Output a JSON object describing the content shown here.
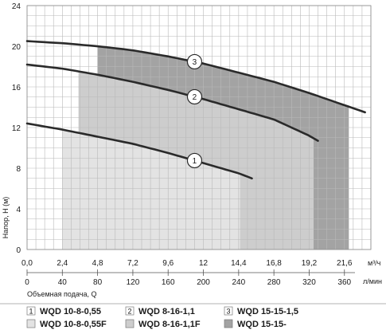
{
  "chart_data": {
    "type": "line",
    "title": "",
    "ylabel": "Напор, H (м)",
    "xlabel": "Объемная подача, Q",
    "xunit": "м³/ч",
    "x2unit": "л/мин",
    "ylim": [
      0,
      24
    ],
    "xlim": [
      0,
      23.4
    ],
    "yticks": [
      "0",
      "4",
      "8",
      "12",
      "16",
      "20",
      "24"
    ],
    "xticks": [
      "0,0",
      "2,4",
      "4,8",
      "7,2",
      "9,6",
      "12",
      "14,4",
      "16,8",
      "19,2",
      "21,6"
    ],
    "x2ticks": [
      "0",
      "40",
      "80",
      "120",
      "160",
      "200",
      "240",
      "280",
      "320",
      "360"
    ],
    "grid": true,
    "series": [
      {
        "name": "WQD 10-8-0,55",
        "label": "1",
        "color": "#2a2a2a",
        "x": [
          0,
          2.4,
          4.8,
          7.2,
          9.6,
          12,
          14.4,
          15.3
        ],
        "y": [
          12.4,
          11.8,
          11.1,
          10.4,
          9.5,
          8.5,
          7.5,
          7.0
        ],
        "region": {
          "xmin": 2.4,
          "xmax": 14.5,
          "fill": "#e3e3e3"
        }
      },
      {
        "name": "WQD 8-16-1,1",
        "label": "2",
        "color": "#2a2a2a",
        "x": [
          0,
          2.4,
          4.8,
          7.2,
          9.6,
          12,
          14.4,
          16.8,
          19.2,
          19.8
        ],
        "y": [
          18.2,
          17.8,
          17.2,
          16.5,
          15.7,
          14.8,
          13.8,
          12.8,
          11.2,
          10.7
        ],
        "region": {
          "xmin": 3.5,
          "xmax": 19.5,
          "fill": "#cdcdcd"
        }
      },
      {
        "name": "WQD 15-15-1,5",
        "label": "3",
        "color": "#2a2a2a",
        "x": [
          0,
          2.4,
          4.8,
          7.2,
          9.6,
          12,
          14.4,
          16.8,
          19.2,
          21.6,
          23.0
        ],
        "y": [
          20.5,
          20.3,
          20.0,
          19.6,
          19.0,
          18.3,
          17.4,
          16.5,
          15.4,
          14.2,
          13.5
        ],
        "region": {
          "xmin": 4.8,
          "xmax": 21.9,
          "fill": "#a3a3a3"
        }
      }
    ],
    "labels_at": [
      {
        "label": "1",
        "x": 11.4
      },
      {
        "label": "2",
        "x": 11.4
      },
      {
        "label": "3",
        "x": 11.4
      }
    ]
  },
  "legend": [
    {
      "badge": "1",
      "name": "WQD 10-8-0,55"
    },
    {
      "badge": "2",
      "name": "WQD 8-16-1,1"
    },
    {
      "badge": "3",
      "name": "WQD 15-15-1,5"
    },
    {
      "badge": "",
      "name": "WQD 10-8-0,55F"
    },
    {
      "badge": "",
      "name": "WQD 8-16-1,1F"
    },
    {
      "badge": "",
      "name": "WQD 15-15-"
    }
  ]
}
